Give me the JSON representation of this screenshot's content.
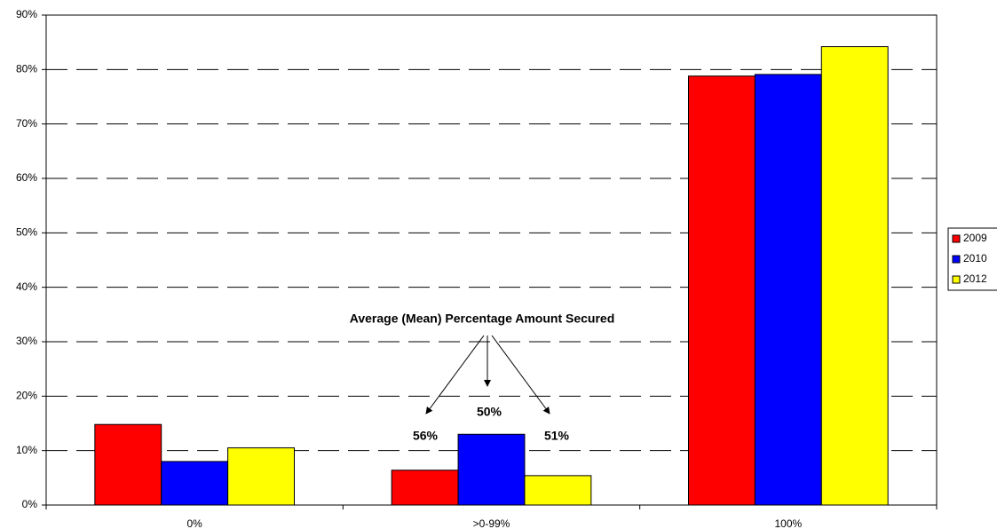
{
  "chart_data": {
    "type": "bar",
    "categories": [
      "0%",
      ">0-99%",
      "100%"
    ],
    "series": [
      {
        "name": "2009",
        "color": "#ff0000",
        "values": [
          14.8,
          6.4,
          78.8
        ]
      },
      {
        "name": "2010",
        "color": "#0000ff",
        "values": [
          8.0,
          13.0,
          79.1
        ]
      },
      {
        "name": "2012",
        "color": "#ffff00",
        "values": [
          10.5,
          5.4,
          84.2
        ]
      }
    ],
    "ylim": [
      0,
      90
    ],
    "yticks": [
      {
        "value": 0,
        "label": "0%"
      },
      {
        "value": 10,
        "label": "10%"
      },
      {
        "value": 20,
        "label": "20%"
      },
      {
        "value": 30,
        "label": "30%"
      },
      {
        "value": 40,
        "label": "40%"
      },
      {
        "value": 50,
        "label": "50%"
      },
      {
        "value": 60,
        "label": "60%"
      },
      {
        "value": 70,
        "label": "70%"
      },
      {
        "value": 80,
        "label": "80%"
      },
      {
        "value": 90,
        "label": "90%"
      }
    ],
    "grid": true,
    "legend": "right",
    "annotations": [
      "Average (Mean) Percentage Amount Secured",
      "56%",
      "50%",
      "51%"
    ]
  }
}
